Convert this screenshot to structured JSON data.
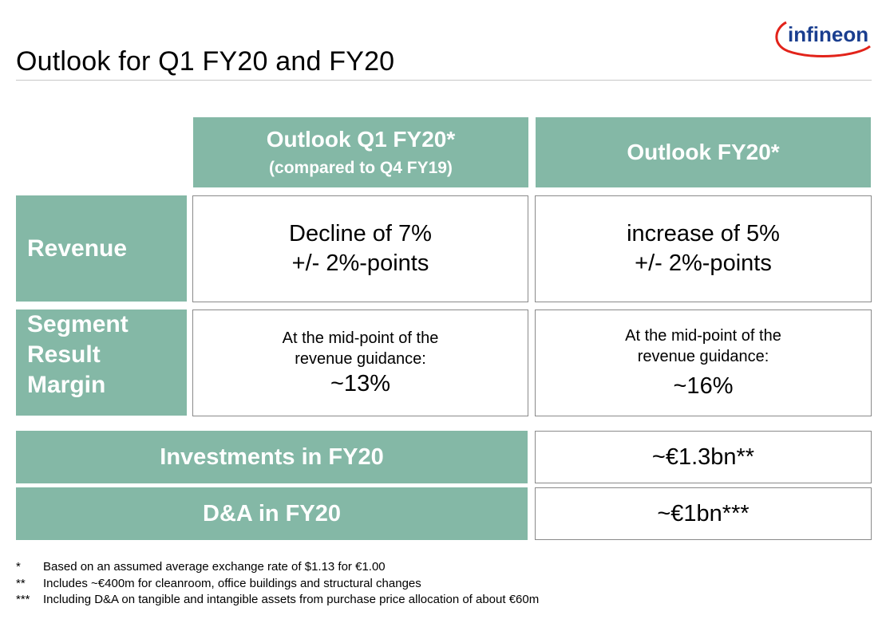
{
  "page": {
    "title": "Outlook for Q1 FY20 and FY20",
    "logo_text": "infineon"
  },
  "table": {
    "col1_header_main": "Outlook Q1 FY20*",
    "col1_header_sub": "(compared to Q4 FY19)",
    "col2_header": "Outlook FY20*",
    "revenue": {
      "label": "Revenue",
      "q1_line1": "Decline of 7%",
      "q1_line2": "+/- 2%-points",
      "fy_line1": "increase of 5%",
      "fy_line2": "+/- 2%-points"
    },
    "margin": {
      "label_line1": "Segment",
      "label_line2": "Result",
      "label_line3": "Margin",
      "q1_line1": "At the mid-point of the",
      "q1_line2": "revenue guidance:",
      "q1_value": "~13%",
      "fy_line1": "At the mid-point of the",
      "fy_line2": "revenue guidance:",
      "fy_value": "~16%"
    },
    "investments": {
      "label": "Investments in FY20",
      "value": "~€1.3bn**"
    },
    "dna": {
      "label": "D&A in FY20",
      "value": "~€1bn***"
    }
  },
  "footnotes": [
    {
      "mark": "*",
      "text": "Based on an assumed average exchange rate of $1.13 for €1.00"
    },
    {
      "mark": "**",
      "text": "Includes ~€400m for cleanroom, office buildings and structural changes"
    },
    {
      "mark": "***",
      "text": "Including D&A on tangible and intangible assets from purchase price allocation of about €60m"
    }
  ],
  "colors": {
    "teal": "#84b8a6",
    "logo_blue": "#1a3e8f",
    "logo_red": "#e2231a"
  }
}
